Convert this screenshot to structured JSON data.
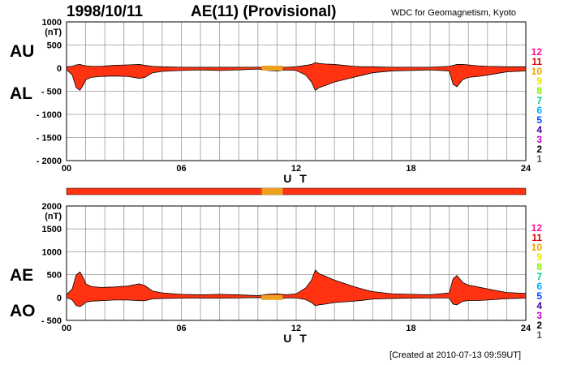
{
  "header": {
    "date": "1998/10/11",
    "title": "AE(11) (Provisional)",
    "organization": "WDC for Geomagnetism, Kyoto"
  },
  "footer": {
    "created": "[Created at 2010-07-13 09:59UT]"
  },
  "colors": {
    "main_fill": "#ff3311",
    "alt_fill": "#f0a020",
    "grid": "#999999",
    "stations_palette": [
      "#ff1493",
      "#dd0000",
      "#f0a000",
      "#e8e800",
      "#90ee00",
      "#00cc88",
      "#00aaff",
      "#0044ff",
      "#440099",
      "#cc00cc",
      "#000000",
      "#555555",
      "#bbbbbb"
    ]
  },
  "chart_data": [
    {
      "type": "area",
      "name": "AU/AL",
      "side_labels": {
        "upper": "AU",
        "lower": "AL"
      },
      "y_unit": "(nT)",
      "ylim": [
        -2000,
        1000
      ],
      "yticks": [
        1000,
        500,
        0,
        -500,
        -1000,
        -1500,
        -2000
      ],
      "ytick_labels": [
        "1000",
        "500",
        "0",
        "- 500",
        "- 1000",
        "- 1500",
        "- 2000"
      ],
      "xlim": [
        0,
        24
      ],
      "xticks": [
        0,
        6,
        12,
        18,
        24
      ],
      "xtick_labels": [
        "00",
        "06",
        "12",
        "18",
        "24"
      ],
      "xlabel": "U T",
      "grid": true,
      "x": [
        0,
        0.3,
        0.5,
        0.7,
        0.9,
        1.0,
        1.3,
        1.8,
        2.5,
        3.2,
        3.8,
        4.1,
        4.5,
        5.0,
        6.0,
        7.0,
        8.0,
        9.0,
        10.0,
        10.5,
        11.0,
        11.5,
        12.0,
        12.5,
        12.8,
        13.0,
        13.2,
        13.5,
        14.0,
        14.5,
        15.0,
        15.5,
        16.0,
        17.0,
        18.0,
        19.0,
        20.0,
        20.2,
        20.4,
        20.7,
        21.0,
        21.5,
        22.0,
        23.0,
        24.0
      ],
      "au": [
        30,
        40,
        70,
        80,
        60,
        50,
        40,
        40,
        60,
        70,
        80,
        60,
        40,
        30,
        20,
        20,
        20,
        20,
        20,
        20,
        20,
        20,
        30,
        60,
        80,
        120,
        100,
        90,
        80,
        60,
        40,
        30,
        30,
        20,
        20,
        20,
        40,
        60,
        80,
        80,
        70,
        50,
        40,
        30,
        30
      ],
      "al": [
        -30,
        -150,
        -420,
        -480,
        -350,
        -250,
        -200,
        -180,
        -170,
        -180,
        -220,
        -200,
        -100,
        -70,
        -50,
        -40,
        -50,
        -40,
        -20,
        -50,
        -60,
        -40,
        -50,
        -150,
        -300,
        -480,
        -420,
        -380,
        -300,
        -250,
        -200,
        -150,
        -100,
        -60,
        -50,
        -40,
        -60,
        -350,
        -400,
        -250,
        -200,
        -180,
        -150,
        -80,
        -60
      ],
      "quality_segment": [
        10.2,
        11.3
      ]
    },
    {
      "type": "area",
      "name": "AE/AO",
      "side_labels": {
        "upper": "AE",
        "lower": "AO"
      },
      "y_unit": "(nT)",
      "ylim": [
        -500,
        2000
      ],
      "yticks": [
        2000,
        1500,
        1000,
        500,
        0,
        -500
      ],
      "ytick_labels": [
        "2000",
        "1500",
        "1000",
        "500",
        "0",
        "- 500"
      ],
      "xlim": [
        0,
        24
      ],
      "xticks": [
        0,
        6,
        12,
        18,
        24
      ],
      "xtick_labels": [
        "00",
        "06",
        "12",
        "18",
        "24"
      ],
      "xlabel": "U T",
      "grid": true,
      "quality_segment": [
        10.2,
        11.3
      ]
    }
  ],
  "legend": {
    "labels": [
      "12",
      "11",
      "10",
      "9",
      "8",
      "7",
      "6",
      "5",
      "4",
      "3",
      "2",
      "1"
    ]
  },
  "status_bar": {
    "main_color": "#ff3311",
    "segment_color": "#f0a020",
    "segment": [
      10.2,
      11.3
    ]
  }
}
